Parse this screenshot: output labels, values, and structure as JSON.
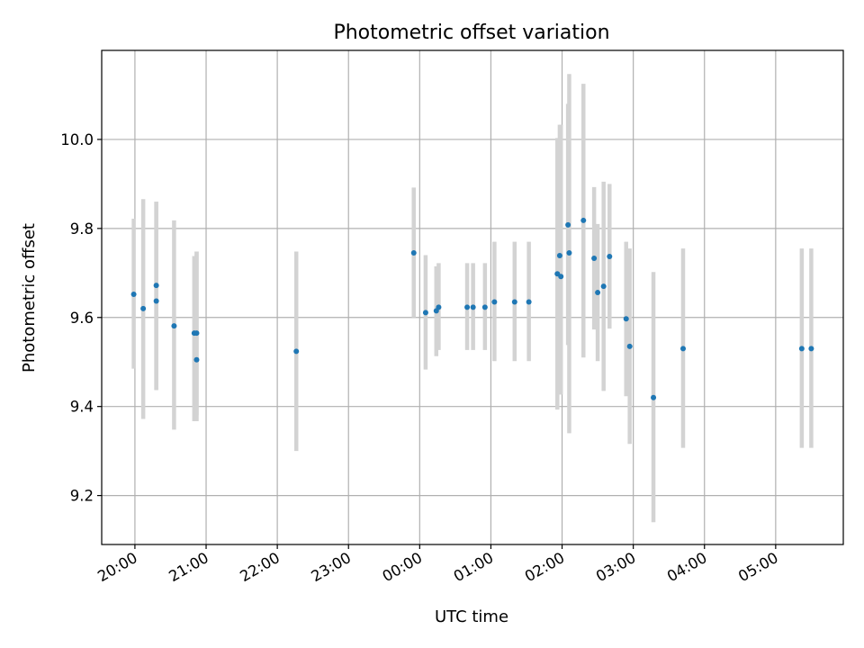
{
  "chart_data": {
    "type": "scatter",
    "title": "Photometric offset variation",
    "xlabel": "UTC time",
    "ylabel": "Photometric offset",
    "x_unit": "UTC time (date, time)",
    "xlim": [
      "2000-01-01T19:32",
      "2000-01-02T05:57"
    ],
    "ylim": [
      9.09,
      10.2
    ],
    "grid": true,
    "legend": "none",
    "colors": {
      "point": "#1f77b4",
      "errorbar": "#d3d3d3",
      "grid": "#b0b0b0"
    },
    "xticks": [
      {
        "t": "2000-01-01T20:00",
        "label": "20:00"
      },
      {
        "t": "2000-01-01T21:00",
        "label": "21:00"
      },
      {
        "t": "2000-01-01T22:00",
        "label": "22:00"
      },
      {
        "t": "2000-01-01T23:00",
        "label": "23:00"
      },
      {
        "t": "2000-01-02T00:00",
        "label": "00:00"
      },
      {
        "t": "2000-01-02T01:00",
        "label": "01:00"
      },
      {
        "t": "2000-01-02T02:00",
        "label": "02:00"
      },
      {
        "t": "2000-01-02T03:00",
        "label": "03:00"
      },
      {
        "t": "2000-01-02T04:00",
        "label": "04:00"
      },
      {
        "t": "2000-01-02T05:00",
        "label": "05:00"
      }
    ],
    "yticks": [
      {
        "v": 9.2,
        "label": "9.2"
      },
      {
        "v": 9.4,
        "label": "9.4"
      },
      {
        "v": 9.6,
        "label": "9.6"
      },
      {
        "v": 9.8,
        "label": "9.8"
      },
      {
        "v": 10.0,
        "label": "10.0"
      }
    ],
    "points": [
      {
        "t": "2000-01-01T19:59",
        "y": 9.652,
        "lo": 9.485,
        "hi": 9.822
      },
      {
        "t": "2000-01-01T20:07",
        "y": 9.62,
        "lo": 9.372,
        "hi": 9.866
      },
      {
        "t": "2000-01-01T20:18",
        "y": 9.672,
        "lo": 9.437,
        "hi": 9.86
      },
      {
        "t": "2000-01-01T20:18",
        "y": 9.637,
        "lo": 9.437,
        "hi": 9.86
      },
      {
        "t": "2000-01-01T20:33",
        "y": 9.581,
        "lo": 9.348,
        "hi": 9.818
      },
      {
        "t": "2000-01-01T20:50",
        "y": 9.565,
        "lo": 9.367,
        "hi": 9.738
      },
      {
        "t": "2000-01-01T20:52",
        "y": 9.565,
        "lo": 9.367,
        "hi": 9.748
      },
      {
        "t": "2000-01-01T20:52",
        "y": 9.505,
        "lo": 9.38,
        "hi": 9.748
      },
      {
        "t": "2000-01-01T22:16",
        "y": 9.524,
        "lo": 9.3,
        "hi": 9.748
      },
      {
        "t": "2000-01-01T23:55",
        "y": 9.745,
        "lo": 9.6,
        "hi": 9.892
      },
      {
        "t": "2000-01-02T00:05",
        "y": 9.611,
        "lo": 9.483,
        "hi": 9.74
      },
      {
        "t": "2000-01-02T00:14",
        "y": 9.615,
        "lo": 9.513,
        "hi": 9.715
      },
      {
        "t": "2000-01-02T00:16",
        "y": 9.623,
        "lo": 9.527,
        "hi": 9.722
      },
      {
        "t": "2000-01-02T00:40",
        "y": 9.623,
        "lo": 9.527,
        "hi": 9.722
      },
      {
        "t": "2000-01-02T00:45",
        "y": 9.623,
        "lo": 9.527,
        "hi": 9.722
      },
      {
        "t": "2000-01-02T00:55",
        "y": 9.623,
        "lo": 9.527,
        "hi": 9.722
      },
      {
        "t": "2000-01-02T01:03",
        "y": 9.635,
        "lo": 9.502,
        "hi": 9.77
      },
      {
        "t": "2000-01-02T01:20",
        "y": 9.635,
        "lo": 9.502,
        "hi": 9.77
      },
      {
        "t": "2000-01-02T01:32",
        "y": 9.635,
        "lo": 9.502,
        "hi": 9.77
      },
      {
        "t": "2000-01-02T01:56",
        "y": 9.698,
        "lo": 9.393,
        "hi": 10.003
      },
      {
        "t": "2000-01-02T01:58",
        "y": 9.739,
        "lo": 9.427,
        "hi": 10.033
      },
      {
        "t": "2000-01-02T01:59",
        "y": 9.692,
        "lo": 9.427,
        "hi": 10.033
      },
      {
        "t": "2000-01-02T02:05",
        "y": 9.808,
        "lo": 9.538,
        "hi": 10.08
      },
      {
        "t": "2000-01-02T02:06",
        "y": 9.745,
        "lo": 9.34,
        "hi": 10.147
      },
      {
        "t": "2000-01-02T02:18",
        "y": 9.818,
        "lo": 9.51,
        "hi": 10.125
      },
      {
        "t": "2000-01-02T02:27",
        "y": 9.733,
        "lo": 9.573,
        "hi": 9.893
      },
      {
        "t": "2000-01-02T02:30",
        "y": 9.656,
        "lo": 9.502,
        "hi": 9.81
      },
      {
        "t": "2000-01-02T02:35",
        "y": 9.67,
        "lo": 9.435,
        "hi": 9.905
      },
      {
        "t": "2000-01-02T02:40",
        "y": 9.737,
        "lo": 9.575,
        "hi": 9.9
      },
      {
        "t": "2000-01-02T02:54",
        "y": 9.597,
        "lo": 9.423,
        "hi": 9.77
      },
      {
        "t": "2000-01-02T02:57",
        "y": 9.535,
        "lo": 9.316,
        "hi": 9.755
      },
      {
        "t": "2000-01-02T03:17",
        "y": 9.42,
        "lo": 9.14,
        "hi": 9.702
      },
      {
        "t": "2000-01-02T03:42",
        "y": 9.53,
        "lo": 9.307,
        "hi": 9.755
      },
      {
        "t": "2000-01-02T05:22",
        "y": 9.53,
        "lo": 9.307,
        "hi": 9.755
      },
      {
        "t": "2000-01-02T05:30",
        "y": 9.53,
        "lo": 9.307,
        "hi": 9.755
      }
    ]
  }
}
